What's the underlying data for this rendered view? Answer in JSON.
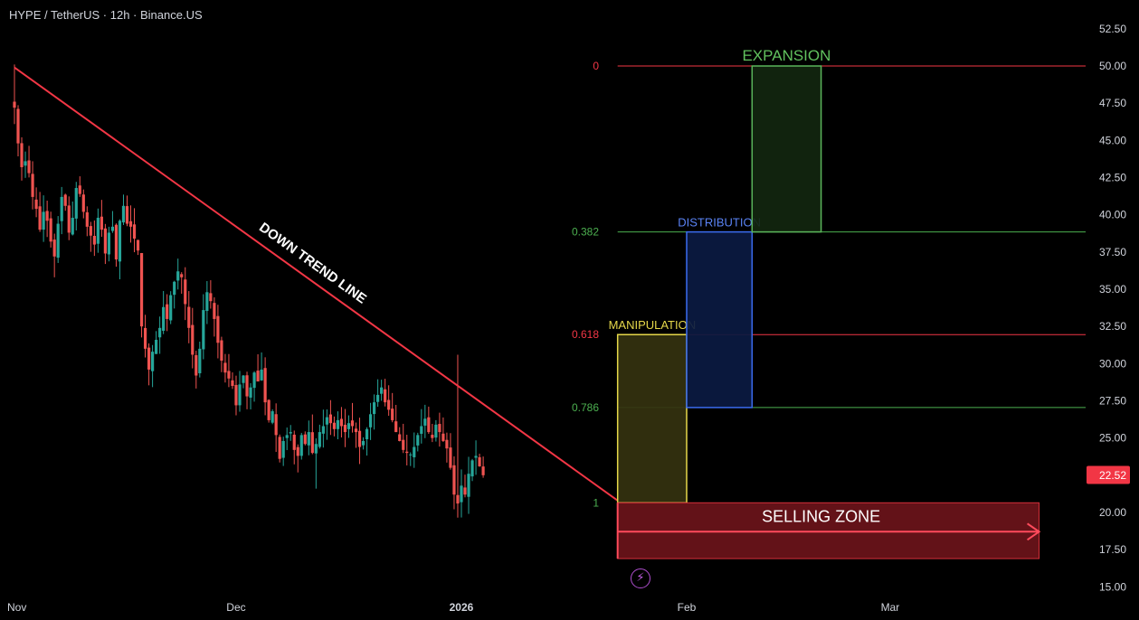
{
  "header": {
    "title": "HYPE / TetherUS · 12h · Binance.US"
  },
  "price_badge": {
    "value": "22.52",
    "color": "#f23645"
  },
  "colors": {
    "background": "#000000",
    "up_candle": "#26a69a",
    "down_candle": "#ef5350",
    "trendline": "#f23645",
    "fib_red": "#f23645",
    "fib_green": "#4caf50",
    "manipulation": "#e6d84a",
    "distribution": "#3b6cf0",
    "expansion": "#5bb55b",
    "selling_zone": "#d32f3a"
  },
  "chart_data": {
    "type": "candlestick",
    "symbol": "HYPE / TetherUS",
    "interval": "12h",
    "exchange": "Binance.US",
    "y_axis": {
      "ticks": [
        "52.50",
        "50.00",
        "47.50",
        "45.00",
        "42.50",
        "40.00",
        "37.50",
        "35.00",
        "32.50",
        "30.00",
        "27.50",
        "25.00",
        "22.50",
        "20.00",
        "17.50",
        "15.00"
      ],
      "range": [
        15.0,
        53.5
      ]
    },
    "x_axis": {
      "ticks": [
        {
          "label": "Nov",
          "date": "2025-11-01"
        },
        {
          "label": "Dec",
          "date": "2025-12-01"
        },
        {
          "label": "2026",
          "date": "2026-01-01"
        },
        {
          "label": "Feb",
          "date": "2026-02-01"
        },
        {
          "label": "Mar",
          "date": "2026-03-01"
        }
      ],
      "range": [
        "2025-10-31T12:00",
        "2026-03-25T00:00"
      ]
    },
    "last_price": 22.52,
    "close_series_start": "2025-10-31T12:00",
    "close_series_interval_hours": 12,
    "closes": [
      47.2,
      44.8,
      43.2,
      43.6,
      42.8,
      41.2,
      40.4,
      39.0,
      40.2,
      39.6,
      38.2,
      37.2,
      39.4,
      41.2,
      40.6,
      38.8,
      39.8,
      41.8,
      41.4,
      40.2,
      39.2,
      38.6,
      38.0,
      39.8,
      39.0,
      37.4,
      38.8,
      39.2,
      37.0,
      39.6,
      40.6,
      39.4,
      39.2,
      38.4,
      37.6,
      32.5,
      31.0,
      29.6,
      30.8,
      31.6,
      32.4,
      33.8,
      33.0,
      34.6,
      35.5,
      36.2,
      35.8,
      34.0,
      32.4,
      30.6,
      29.2,
      31.0,
      33.6,
      34.8,
      34.2,
      33.0,
      31.4,
      30.2,
      29.4,
      29.0,
      28.5,
      27.2,
      28.6,
      29.2,
      27.8,
      28.4,
      29.4,
      28.8,
      29.6,
      27.4,
      26.2,
      26.8,
      25.2,
      23.6,
      24.8,
      25.2,
      25.4,
      24.2,
      23.8,
      25.2,
      24.6,
      25.4,
      24.0,
      24.6,
      25.4,
      25.8,
      26.4,
      26.0,
      25.6,
      26.2,
      25.8,
      25.4,
      26.0,
      25.8,
      25.4,
      24.4,
      24.8,
      25.6,
      26.6,
      27.4,
      27.9,
      28.4,
      27.4,
      26.9,
      26.2,
      25.4,
      24.8,
      24.2,
      24.0,
      23.9,
      24.4,
      25.2,
      25.8,
      26.3,
      25.4,
      25.0,
      25.9,
      25.4,
      24.8,
      24.3,
      23.0,
      21.2,
      20.6,
      21.8,
      21.2,
      22.6,
      23.5,
      23.8,
      23.1,
      22.5
    ],
    "annotations": {
      "trendline": {
        "label": "DOWN TREND LINE",
        "from": {
          "date": "2025-10-31T12:00",
          "price": 49.9
        },
        "to": {
          "date": "2026-01-22T12:00",
          "price": 20.8
        }
      },
      "fib_levels": [
        {
          "label": "0",
          "price": 50.0,
          "color": "#f23645"
        },
        {
          "label": "0.382",
          "price": 38.85,
          "color": "#4caf50"
        },
        {
          "label": "0.618",
          "price": 31.95,
          "color": "#f23645"
        },
        {
          "label": "0.786",
          "price": 27.05,
          "color": "#4caf50"
        },
        {
          "label": "1",
          "price": 20.65,
          "color": "#4caf50"
        }
      ],
      "phases": [
        {
          "label": "MANIPULATION",
          "from": "2026-01-22T12:00",
          "to": "2026-02-01T00:00",
          "low": 20.65,
          "high": 31.95
        },
        {
          "label": "DISTRIBUTION",
          "from": "2026-02-01T00:00",
          "to": "2026-02-10T00:00",
          "low": 27.05,
          "high": 38.85
        },
        {
          "label": "EXPANSION",
          "from": "2026-02-10T00:00",
          "to": "2026-02-19T12:00",
          "low": 38.85,
          "high": 50.0
        }
      ],
      "selling_zone": {
        "label": "SELLING ZONE",
        "from": "2026-01-22T12:00",
        "to": "2026-03-21T12:00",
        "low": 16.9,
        "high": 20.65
      }
    }
  }
}
